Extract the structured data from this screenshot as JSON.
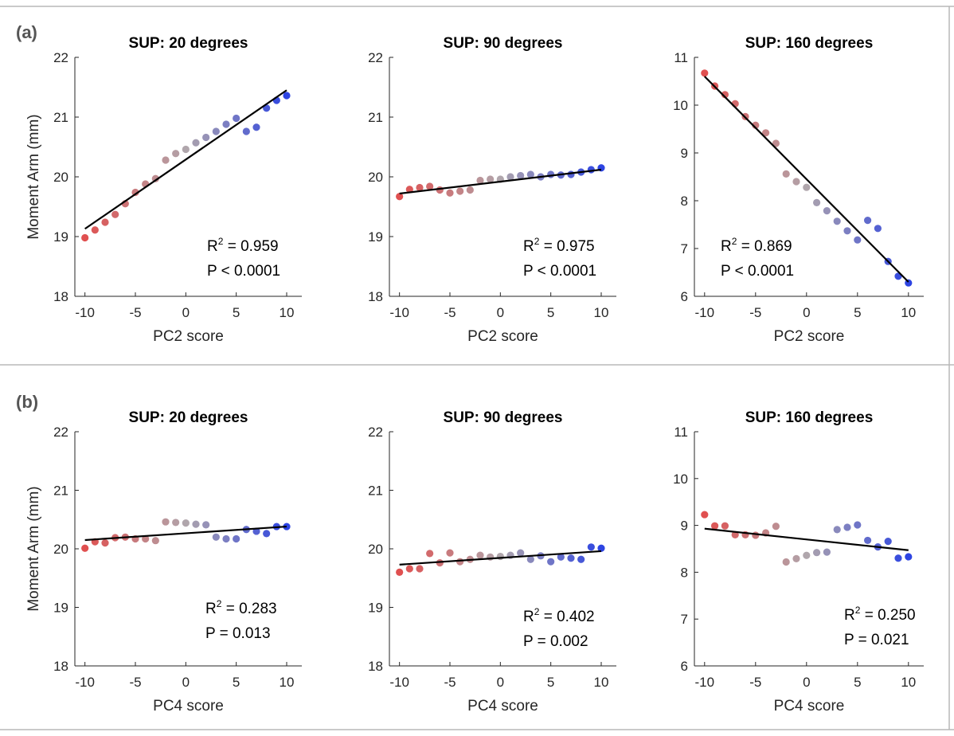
{
  "panels": [
    {
      "label": "(a)"
    },
    {
      "label": "(b)"
    }
  ],
  "chart_data": [
    {
      "type": "scatter",
      "panel": "(a)",
      "title": "SUP: 20 degrees",
      "xlabel": "PC2 score",
      "ylabel": "Moment Arm (mm)",
      "xlim": [
        -11,
        11.5
      ],
      "ylim": [
        18,
        22
      ],
      "xticks": [
        -10,
        -5,
        0,
        5,
        10
      ],
      "yticks": [
        18,
        19,
        20,
        21,
        22
      ],
      "x": [
        -10,
        -9,
        -8,
        -7,
        -6,
        -5,
        -4,
        -3,
        -2,
        -1,
        0,
        1,
        2,
        3,
        4,
        5,
        6,
        7,
        8,
        9,
        10
      ],
      "y": [
        18.98,
        19.11,
        19.24,
        19.37,
        19.55,
        19.74,
        19.88,
        19.97,
        20.28,
        20.39,
        20.46,
        20.57,
        20.66,
        20.76,
        20.88,
        20.98,
        20.76,
        20.83,
        21.15,
        21.28,
        21.36
      ],
      "fit_line": {
        "x": [
          -10,
          10
        ],
        "y": [
          19.13,
          21.45
        ]
      },
      "r2": "0.959",
      "p": "P < 0.0001"
    },
    {
      "type": "scatter",
      "panel": "(a)",
      "title": "SUP: 90 degrees",
      "xlabel": "PC2 score",
      "ylabel": "",
      "xlim": [
        -11,
        11.5
      ],
      "ylim": [
        18,
        22
      ],
      "xticks": [
        -10,
        -5,
        0,
        5,
        10
      ],
      "yticks": [
        18,
        19,
        20,
        21,
        22
      ],
      "x": [
        -10,
        -9,
        -8,
        -7,
        -6,
        -5,
        -4,
        -3,
        -2,
        -1,
        0,
        1,
        2,
        3,
        4,
        5,
        6,
        7,
        8,
        9,
        10
      ],
      "y": [
        19.67,
        19.79,
        19.82,
        19.84,
        19.78,
        19.73,
        19.76,
        19.78,
        19.94,
        19.96,
        19.96,
        20.0,
        20.02,
        20.04,
        20.0,
        20.04,
        20.03,
        20.04,
        20.08,
        20.12,
        20.15
      ],
      "fit_line": {
        "x": [
          -10,
          10
        ],
        "y": [
          19.72,
          20.12
        ]
      },
      "r2": "0.975",
      "p": "P < 0.0001"
    },
    {
      "type": "scatter",
      "panel": "(a)",
      "title": "SUP: 160 degrees",
      "xlabel": "PC2 score",
      "ylabel": "",
      "xlim": [
        -11,
        11.5
      ],
      "ylim": [
        6,
        11
      ],
      "xticks": [
        -10,
        -5,
        0,
        5,
        10
      ],
      "yticks": [
        6,
        7,
        8,
        9,
        10,
        11
      ],
      "x": [
        -10,
        -9,
        -8,
        -7,
        -6,
        -5,
        -4,
        -3,
        -2,
        -1,
        0,
        1,
        2,
        3,
        4,
        5,
        6,
        7,
        8,
        9,
        10
      ],
      "y": [
        10.67,
        10.4,
        10.22,
        10.03,
        9.76,
        9.58,
        9.42,
        9.2,
        8.56,
        8.4,
        8.28,
        7.96,
        7.79,
        7.57,
        7.37,
        7.18,
        7.59,
        7.42,
        6.73,
        6.42,
        6.28
      ],
      "fit_line": {
        "x": [
          -10,
          10
        ],
        "y": [
          10.6,
          6.3
        ]
      },
      "r2": "0.869",
      "p": "P < 0.0001"
    },
    {
      "type": "scatter",
      "panel": "(b)",
      "title": "SUP: 20 degrees",
      "xlabel": "PC4 score",
      "ylabel": "Moment Arm (mm)",
      "xlim": [
        -11,
        11.5
      ],
      "ylim": [
        18,
        22
      ],
      "xticks": [
        -10,
        -5,
        0,
        5,
        10
      ],
      "yticks": [
        18,
        19,
        20,
        21,
        22
      ],
      "x": [
        -10,
        -9,
        -8,
        -7,
        -6,
        -5,
        -4,
        -3,
        -2,
        -1,
        0,
        1,
        2,
        3,
        4,
        5,
        6,
        7,
        8,
        9,
        10
      ],
      "y": [
        20.01,
        20.12,
        20.1,
        20.19,
        20.2,
        20.17,
        20.17,
        20.14,
        20.46,
        20.45,
        20.44,
        20.42,
        20.41,
        20.2,
        20.17,
        20.17,
        20.33,
        20.3,
        20.26,
        20.38,
        20.38
      ],
      "fit_line": {
        "x": [
          -10,
          10
        ],
        "y": [
          20.15,
          20.38
        ]
      },
      "r2": "0.283",
      "p": "P = 0.013"
    },
    {
      "type": "scatter",
      "panel": "(b)",
      "title": "SUP: 90 degrees",
      "xlabel": "PC4 score",
      "ylabel": "",
      "xlim": [
        -11,
        11.5
      ],
      "ylim": [
        18,
        22
      ],
      "xticks": [
        -10,
        -5,
        0,
        5,
        10
      ],
      "yticks": [
        18,
        19,
        20,
        21,
        22
      ],
      "x": [
        -10,
        -9,
        -8,
        -7,
        -6,
        -5,
        -4,
        -3,
        -2,
        -1,
        0,
        1,
        2,
        3,
        4,
        5,
        6,
        7,
        8,
        9,
        10
      ],
      "y": [
        19.6,
        19.66,
        19.66,
        19.92,
        19.76,
        19.93,
        19.78,
        19.82,
        19.89,
        19.86,
        19.87,
        19.89,
        19.93,
        19.82,
        19.88,
        19.78,
        19.86,
        19.84,
        19.82,
        20.03,
        20.01
      ],
      "fit_line": {
        "x": [
          -10,
          10
        ],
        "y": [
          19.73,
          19.96
        ]
      },
      "r2": "0.402",
      "p": "P = 0.002"
    },
    {
      "type": "scatter",
      "panel": "(b)",
      "title": "SUP: 160 degrees",
      "xlabel": "PC4 score",
      "ylabel": "",
      "xlim": [
        -11,
        11.5
      ],
      "ylim": [
        6,
        11
      ],
      "xticks": [
        -10,
        -5,
        0,
        5,
        10
      ],
      "yticks": [
        6,
        7,
        8,
        9,
        10,
        11
      ],
      "x": [
        -10,
        -9,
        -8,
        -7,
        -6,
        -5,
        -4,
        -3,
        -2,
        -1,
        0,
        1,
        2,
        3,
        4,
        5,
        6,
        7,
        8,
        9,
        10
      ],
      "y": [
        9.23,
        8.99,
        8.99,
        8.8,
        8.8,
        8.79,
        8.84,
        8.98,
        8.22,
        8.29,
        8.36,
        8.42,
        8.43,
        8.91,
        8.96,
        9.01,
        8.68,
        8.54,
        8.66,
        8.3,
        8.33
      ],
      "fit_line": {
        "x": [
          -10,
          10
        ],
        "y": [
          8.93,
          8.47
        ]
      },
      "r2": "0.250",
      "p": "P = 0.021"
    }
  ],
  "colors": {
    "low": "#e05050",
    "mid": "#b0a6ac",
    "high": "#2d44e2",
    "frame": "#b8b8b8",
    "axis": "#262626"
  }
}
